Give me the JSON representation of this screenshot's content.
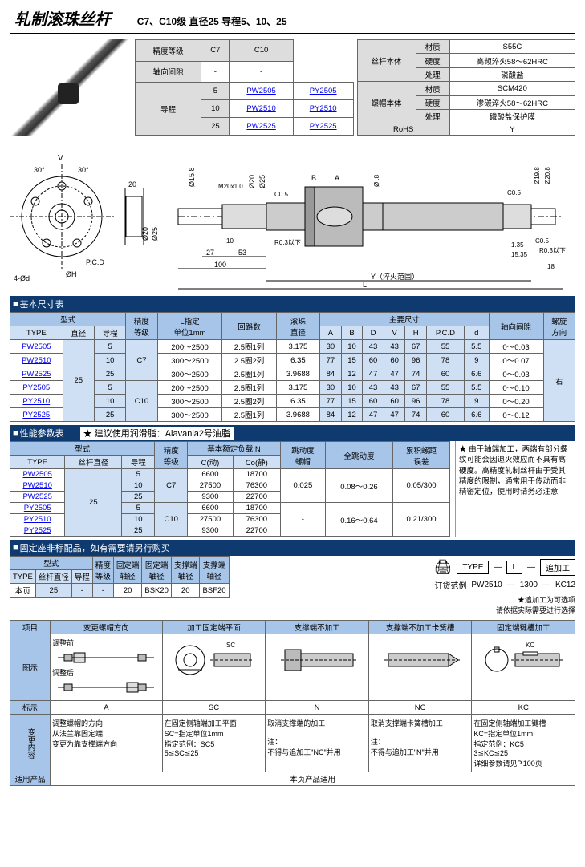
{
  "header": {
    "title": "轧制滚珠丝杆",
    "subtitle": "C7、C10级 直径25 导程5、10、25"
  },
  "spec1": {
    "headers": [
      "精度等级",
      "C7",
      "C10"
    ],
    "row_clearance": [
      "轴向间隙",
      "-",
      "-"
    ],
    "lead_label": "导程",
    "rows": [
      {
        "lead": "5",
        "c7": "PW2505",
        "c10": "PY2505"
      },
      {
        "lead": "10",
        "c7": "PW2510",
        "c10": "PY2510"
      },
      {
        "lead": "25",
        "c7": "PW2525",
        "c10": "PY2525"
      }
    ]
  },
  "spec2": {
    "label1": "丝杆本体",
    "label2": "螺帽本体",
    "rows1": [
      [
        "材质",
        "S55C"
      ],
      [
        "硬度",
        "高频淬火58～62HRC"
      ],
      [
        "处理",
        "磷酸盐"
      ]
    ],
    "rows2": [
      [
        "材质",
        "SCM420"
      ],
      [
        "硬度",
        "渗碳淬火58～62HRC"
      ],
      [
        "处理",
        "磷酸盐保护膜"
      ]
    ],
    "rohs": [
      "RoHS",
      "Y"
    ]
  },
  "diagram_labels": {
    "V": "V",
    "ang": "30°",
    "pcd": "P.C.D",
    "hole": "4-Ød",
    "phiH": "ØH",
    "dims": [
      "20",
      "Ø20",
      "Ø25",
      "Ø15.8",
      "M20x1.0",
      "Ø20",
      "Ø25",
      "C0.5",
      "10",
      "27",
      "53",
      "100",
      "R0.3以下",
      "B",
      "A",
      "1.35",
      "15.35",
      "18",
      "Ø19.8",
      "Ø20.8",
      "C0.5",
      "R0.3以下",
      "L",
      "Y（淬火范围）"
    ]
  },
  "basic_dim": {
    "title": "基本尺寸表",
    "type_hdr": "型式",
    "type_sub": [
      "TYPE",
      "直径",
      "导程"
    ],
    "acc_hdr": "精度\n等级",
    "L_hdr": "L指定\n单位1mm",
    "loops": "回路数",
    "ball": "滚珠\n直径",
    "main_hdr": "主要尺寸",
    "main_sub": [
      "A",
      "B",
      "D",
      "V",
      "H",
      "P.C.D",
      "d"
    ],
    "clearance": "轴向间隙",
    "dir": "螺旋\n方向",
    "dir_val": "右",
    "rows": [
      {
        "type": "PW2505",
        "dia": "25",
        "lead": "5",
        "acc": "C7",
        "L": "200～2500",
        "loops": "2.5圈1列",
        "ball": "3.175",
        "A": "30",
        "B": "10",
        "V": "43",
        "Vb": "43",
        "H": "67",
        "pcd": "55",
        "d": "5.5",
        "cl": "0～0.03"
      },
      {
        "type": "PW2510",
        "dia": "25",
        "lead": "10",
        "acc": "C7",
        "L": "300～2500",
        "loops": "2.5圈2列",
        "ball": "6.35",
        "A": "77",
        "B": "15",
        "V": "60",
        "Vb": "60",
        "H": "96",
        "pcd": "78",
        "d": "9",
        "cl": "0～0.07"
      },
      {
        "type": "PW2525",
        "dia": "25",
        "lead": "25",
        "acc": "C7",
        "L": "300～2500",
        "loops": "2.5圈1列",
        "ball": "3.9688",
        "A": "84",
        "B": "12",
        "V": "47",
        "Vb": "47",
        "H": "74",
        "pcd": "60",
        "d": "6.6",
        "cl": "0～0.03"
      },
      {
        "type": "PY2505",
        "dia": "25",
        "lead": "5",
        "acc": "C10",
        "L": "200～2500",
        "loops": "2.5圈1列",
        "ball": "3.175",
        "A": "30",
        "B": "10",
        "V": "43",
        "Vb": "43",
        "H": "67",
        "pcd": "55",
        "d": "5.5",
        "cl": "0～0.10"
      },
      {
        "type": "PY2510",
        "dia": "25",
        "lead": "10",
        "acc": "C10",
        "L": "300～2500",
        "loops": "2.5圈2列",
        "ball": "6.35",
        "A": "77",
        "B": "15",
        "V": "60",
        "Vb": "60",
        "H": "96",
        "pcd": "78",
        "d": "9",
        "cl": "0～0.20"
      },
      {
        "type": "PY2525",
        "dia": "25",
        "lead": "25",
        "acc": "C10",
        "L": "300～2500",
        "loops": "2.5圈1列",
        "ball": "3.9688",
        "A": "84",
        "B": "12",
        "V": "47",
        "Vb": "47",
        "H": "74",
        "pcd": "60",
        "d": "6.6",
        "cl": "0～0.12"
      }
    ]
  },
  "perf": {
    "title": "性能参数表",
    "grease": "★ 建议使用润滑脂：Alavania2号油脂",
    "type_hdr": "型式",
    "type_sub": [
      "TYPE",
      "丝杆直径",
      "导程"
    ],
    "acc": "精度\n等级",
    "load_hdr": "基本额定负载 N",
    "load_sub": [
      "C(动)",
      "Co(静)"
    ],
    "runout": "跳动度\n螺帽",
    "full_runout": "全跳动度",
    "cum": "累积螺距\n误差",
    "rows": [
      {
        "type": "PW2505",
        "dia": "25",
        "lead": "5",
        "acc": "C7",
        "cd": "6600",
        "co": "18700",
        "r": "0.025",
        "fr": "0.08～0.26",
        "cum": "0.05/300"
      },
      {
        "type": "PW2510",
        "dia": "25",
        "lead": "10",
        "acc": "C7",
        "cd": "27500",
        "co": "76300",
        "r": "0.025",
        "fr": "0.08～0.26",
        "cum": "0.05/300"
      },
      {
        "type": "PW2525",
        "dia": "25",
        "lead": "25",
        "acc": "C7",
        "cd": "9300",
        "co": "22700",
        "r": "0.025",
        "fr": "0.08～0.26",
        "cum": "0.05/300"
      },
      {
        "type": "PY2505",
        "dia": "25",
        "lead": "5",
        "acc": "C10",
        "cd": "6600",
        "co": "18700",
        "r": "-",
        "fr": "0.16～0.64",
        "cum": "0.21/300"
      },
      {
        "type": "PY2510",
        "dia": "25",
        "lead": "10",
        "acc": "C10",
        "cd": "27500",
        "co": "76300",
        "r": "-",
        "fr": "0.16～0.64",
        "cum": "0.21/300"
      },
      {
        "type": "PY2525",
        "dia": "25",
        "lead": "25",
        "acc": "C10",
        "cd": "9300",
        "co": "22700",
        "r": "-",
        "fr": "0.16～0.64",
        "cum": "0.21/300"
      }
    ],
    "note": "★ 由于轴端加工，两端有部分螺纹可能会因退火效应而不具有高硬度。高精度轧制丝杆由于受其精度的限制，通常用于传动而非精密定位，使用时请务必注意"
  },
  "mount": {
    "title": "固定座非标配品，如有需要请另行购买",
    "headers": [
      "型式",
      "",
      "",
      "精度\n等级",
      "固定端\n轴径",
      "固定端\n轴径",
      "支撑端\n轴径",
      "支撑端\n轴径"
    ],
    "subheaders": [
      "TYPE",
      "丝杆直径",
      "导程"
    ],
    "row": [
      "本页",
      "25",
      "-",
      "-",
      "20",
      "BSK20",
      "20",
      "BSF20"
    ]
  },
  "order": {
    "label": "订货范例",
    "boxes": [
      "TYPE",
      "L",
      "追加工"
    ],
    "example": [
      "PW2510",
      "1300",
      "KC12"
    ],
    "star": "★追加工为可选项",
    "note": "请依据实际需要进行选择"
  },
  "proc": {
    "cols": [
      "项目",
      "变更螺帽方向",
      "加工固定端平面",
      "支撑端不加工",
      "支撑端不加工卡簧槽",
      "固定端键槽加工"
    ],
    "before": "调整前",
    "after": "调整后",
    "marks": [
      "标示",
      "A",
      "SC",
      "N",
      "NC",
      "KC"
    ],
    "content_label": "变更内容",
    "contents": [
      "调整螺帽的方向\n从法兰靠固定端\n变更为靠支撑端方向",
      "在固定侧轴端加工平面\nSC=指定单位1mm\n指定范例：SC5\n5≦SC≦25",
      "取消支撑端的加工\n\n注：\n不得与追加工\"NC\"并用",
      "取消支撑端卡簧槽加工\n\n注：\n不得与追加工\"N\"并用",
      "在固定侧轴端加工键槽\nKC=指定单位1mm\n指定范例：KC5\n3≦KC≦25\n详细参数请见P.100页"
    ],
    "apply": "适用产品",
    "apply_val": "本页产品适用",
    "illust": "图示"
  }
}
